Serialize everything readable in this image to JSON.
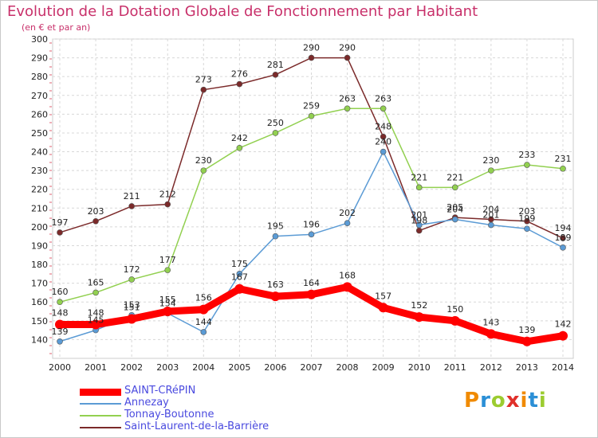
{
  "header": {
    "title": "Evolution de la Dotation Globale de Fonctionnement par Habitant",
    "subtitle": "(en € et par an)"
  },
  "brand": {
    "text": "Proxiti",
    "colors": [
      "#f08a00",
      "#2b8fd6",
      "#9ccc30",
      "#e0302a",
      "#f08a00",
      "#2b8fd6",
      "#9ccc30"
    ]
  },
  "chart_data": {
    "type": "line",
    "x": [
      "2000",
      "2001",
      "2002",
      "2003",
      "2004",
      "2005",
      "2006",
      "2007",
      "2008",
      "2009",
      "2010",
      "2011",
      "2012",
      "2013",
      "2014"
    ],
    "ylim": [
      130,
      300
    ],
    "yticks": [
      140,
      150,
      160,
      170,
      180,
      190,
      200,
      210,
      220,
      230,
      240,
      250,
      260,
      270,
      280,
      290,
      300
    ],
    "grid": true,
    "legend": "bottom-left",
    "series": [
      {
        "name": "SAINT-CRéPIN",
        "color": "#ff0000",
        "width": 9,
        "values": [
          148,
          148,
          151,
          155,
          156,
          167,
          163,
          164,
          168,
          157,
          152,
          150,
          143,
          139,
          142
        ]
      },
      {
        "name": "Annezay",
        "color": "#5b9bd5",
        "width": 1.5,
        "values": [
          139,
          145,
          153,
          154,
          144,
          175,
          195,
          196,
          202,
          240,
          201,
          204,
          201,
          199,
          189
        ]
      },
      {
        "name": "Tonnay-Boutonne",
        "color": "#92d050",
        "width": 1.5,
        "values": [
          160,
          165,
          172,
          177,
          230,
          242,
          250,
          259,
          263,
          263,
          221,
          221,
          230,
          233,
          231
        ]
      },
      {
        "name": "Saint-Laurent-de-la-Barrière",
        "color": "#7b2a2a",
        "width": 1.5,
        "values": [
          197,
          203,
          211,
          212,
          273,
          276,
          281,
          290,
          290,
          248,
          198,
          205,
          204,
          203,
          194
        ]
      }
    ]
  }
}
